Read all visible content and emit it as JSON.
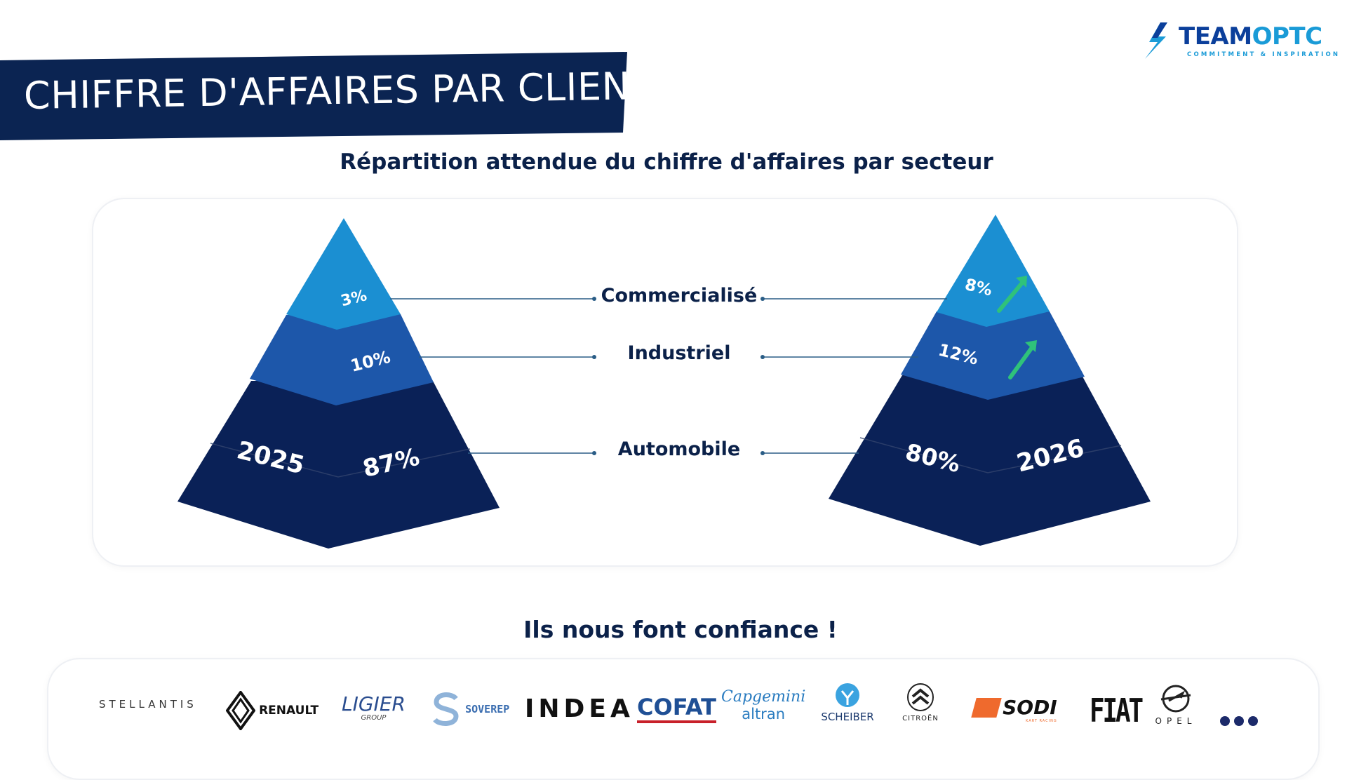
{
  "brand": {
    "team": "TEAM",
    "optc": "OPTC",
    "tagline": "COMMITMENT & INSPIRATION"
  },
  "page_title": "CHIFFRE D'AFFAIRES PAR CLIENT",
  "subtitle": "Répartition attendue du chiffre d'affaires par secteur",
  "chart_data": {
    "type": "pyramid",
    "title": "Répartition attendue du chiffre d'affaires par secteur",
    "categories": [
      "Commercialisé",
      "Industriel",
      "Automobile"
    ],
    "series": [
      {
        "name": "2025",
        "values": [
          3,
          10,
          87
        ],
        "labels": [
          "3%",
          "10%",
          "87%"
        ]
      },
      {
        "name": "2026",
        "values": [
          8,
          12,
          80
        ],
        "labels": [
          "8%",
          "12%",
          "80%"
        ]
      }
    ],
    "trend": {
      "Commercialisé": "up",
      "Industriel": "up"
    },
    "unit": "%"
  },
  "colors": {
    "navy": "#0a2157",
    "banner": "#0b2452",
    "mid": "#1d57aa",
    "top": "#1b8fd2",
    "arrow": "#2fc27a",
    "text": "#0b2149",
    "connector": "#2a5d86"
  },
  "trust_title": "Ils nous font confiance !",
  "clients": [
    {
      "name": "STELLANTIS",
      "icon": "stellantis-logo"
    },
    {
      "name": "RENAULT",
      "icon": "renault-logo"
    },
    {
      "name": "LIGIER",
      "sub": "GROUP",
      "icon": "ligier-logo"
    },
    {
      "name": "SOVEREP",
      "icon": "soverep-logo"
    },
    {
      "name": "INDEA",
      "icon": "indea-logo"
    },
    {
      "name": "COFAT",
      "icon": "cofat-logo"
    },
    {
      "name": "Capgemini",
      "sub": "altran",
      "icon": "capgemini-logo"
    },
    {
      "name": "SCHEIBER",
      "icon": "scheiber-logo"
    },
    {
      "name": "CITROËN",
      "icon": "citroen-logo"
    },
    {
      "name": "SODI",
      "sub": "KART RACING",
      "icon": "sodi-logo"
    },
    {
      "name": "FIAT",
      "icon": "fiat-logo"
    },
    {
      "name": "OPEL",
      "icon": "opel-logo"
    }
  ],
  "more_icon": "more-dots-icon"
}
